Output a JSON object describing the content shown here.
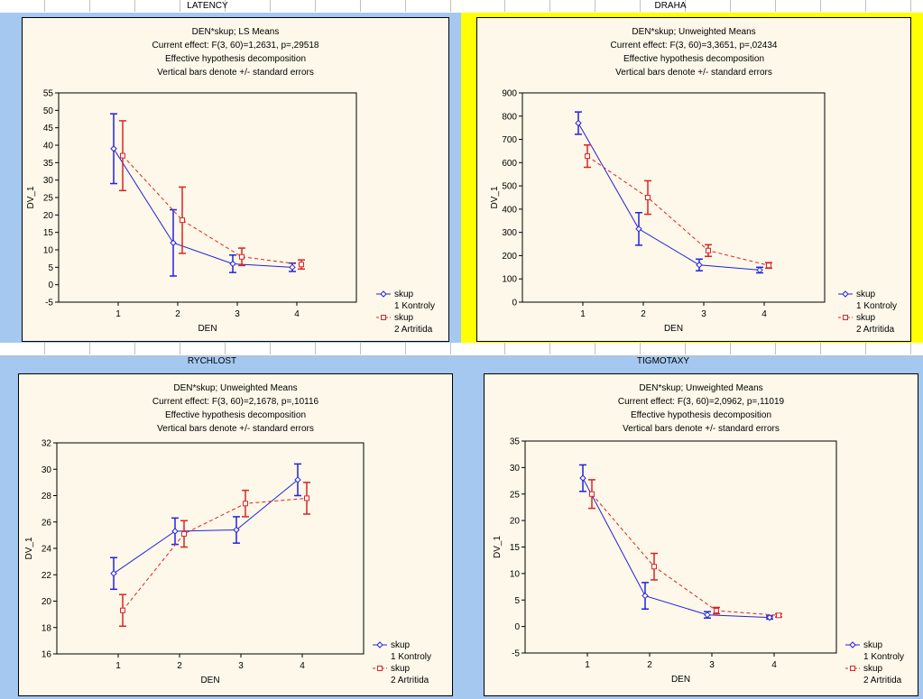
{
  "colors": {
    "series1": "#2222dd",
    "series2": "#dd2222",
    "highlight": "#ffff00",
    "background": "#a4c8f0",
    "plot_bg": "#fdf8e9"
  },
  "chart_data": [
    {
      "id": "latency",
      "type": "line",
      "header": "LATENCY",
      "title_lines": [
        "DEN*skup; LS Means",
        "Current effect: F(3, 60)=1,2631, p=,29518",
        "Effective hypothesis decomposition",
        "Vertical bars denote +/- standard errors"
      ],
      "xlabel": "DEN",
      "ylabel": "DV_1",
      "categories": [
        "1",
        "2",
        "3",
        "4"
      ],
      "ylim": [
        -5,
        55
      ],
      "yticks": [
        "-5",
        "0",
        "5",
        "10",
        "15",
        "20",
        "25",
        "30",
        "35",
        "40",
        "45",
        "50",
        "55"
      ],
      "legend_title": "skup",
      "series": [
        {
          "name": "1 Kontroly",
          "values": [
            39,
            12,
            6,
            5
          ],
          "errors": [
            10,
            9.5,
            2.5,
            1.2
          ]
        },
        {
          "name": "2 Artritida",
          "values": [
            37,
            18.5,
            8,
            5.8
          ],
          "errors": [
            10,
            9.5,
            2.5,
            1.3
          ]
        }
      ]
    },
    {
      "id": "draha",
      "type": "line",
      "header": "DRAHA",
      "title_lines": [
        "DEN*skup; Unweighted Means",
        "Current effect: F(3, 60)=3,3651, p=,02434",
        "Effective hypothesis decomposition",
        "Vertical bars denote +/- standard errors"
      ],
      "xlabel": "DEN",
      "ylabel": "DV_1",
      "categories": [
        "1",
        "2",
        "3",
        "4"
      ],
      "ylim": [
        0,
        900
      ],
      "yticks": [
        "0",
        "100",
        "200",
        "300",
        "400",
        "500",
        "600",
        "700",
        "800",
        "900"
      ],
      "legend_title": "skup",
      "series": [
        {
          "name": "1 Kontroly",
          "values": [
            770,
            315,
            160,
            138
          ],
          "errors": [
            48,
            70,
            25,
            12
          ]
        },
        {
          "name": "2 Artritida",
          "values": [
            628,
            450,
            222,
            158
          ],
          "errors": [
            48,
            72,
            25,
            12
          ]
        }
      ]
    },
    {
      "id": "rychlost",
      "type": "line",
      "header": "RYCHLOST",
      "title_lines": [
        "DEN*skup; Unweighted Means",
        "Current effect: F(3, 60)=2,1678, p=,10116",
        "Effective hypothesis decomposition",
        "Vertical bars denote +/- standard errors"
      ],
      "xlabel": "DEN",
      "ylabel": "DV_1",
      "categories": [
        "1",
        "2",
        "3",
        "4"
      ],
      "ylim": [
        16,
        32
      ],
      "yticks": [
        "16",
        "18",
        "20",
        "22",
        "24",
        "26",
        "28",
        "30",
        "32"
      ],
      "legend_title": "skup",
      "series": [
        {
          "name": "1 Kontroly",
          "values": [
            22.1,
            25.3,
            25.4,
            29.2
          ],
          "errors": [
            1.2,
            1.0,
            1.0,
            1.2
          ]
        },
        {
          "name": "2 Artritida",
          "values": [
            19.3,
            25.1,
            27.4,
            27.8
          ],
          "errors": [
            1.2,
            1.0,
            1.0,
            1.2
          ]
        }
      ]
    },
    {
      "id": "tigmotaxy",
      "type": "line",
      "header": "TIGMOTAXY",
      "title_lines": [
        "DEN*skup; Unweighted Means",
        "Current effect: F(3, 60)=2,0962, p=,11019",
        "Effective hypothesis decomposition",
        "Vertical bars denote +/- standard errors"
      ],
      "xlabel": "DEN",
      "ylabel": "DV_1",
      "categories": [
        "1",
        "2",
        "3",
        "4"
      ],
      "ylim": [
        -5,
        35
      ],
      "yticks": [
        "-5",
        "0",
        "5",
        "10",
        "15",
        "20",
        "25",
        "30",
        "35"
      ],
      "legend_title": "skup",
      "series": [
        {
          "name": "1 Kontroly",
          "values": [
            28,
            5.8,
            2.2,
            1.7
          ],
          "errors": [
            2.5,
            2.5,
            0.6,
            0.3
          ]
        },
        {
          "name": "2 Artritida",
          "values": [
            25,
            11.3,
            3,
            2.1
          ],
          "errors": [
            2.7,
            2.5,
            0.6,
            0.3
          ]
        }
      ]
    }
  ]
}
